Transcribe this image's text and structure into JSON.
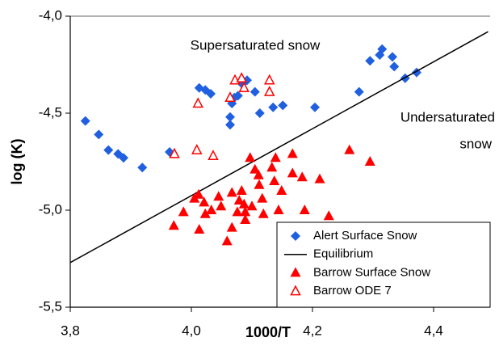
{
  "chart_data": {
    "type": "scatter",
    "x_label": "1000/T",
    "y_label": "log (K)",
    "xlim": [
      3.8,
      4.5
    ],
    "ylim": [
      -5.5,
      -4.0
    ],
    "xticks": [
      {
        "value": 3.8,
        "label": "3,8"
      },
      {
        "value": 4.0,
        "label": "4,0"
      },
      {
        "value": 4.2,
        "label": "4,2"
      },
      {
        "value": 4.4,
        "label": "4,4"
      }
    ],
    "yticks": [
      {
        "value": -5.5,
        "label": "-5,5"
      },
      {
        "value": -5.0,
        "label": "-5,0"
      },
      {
        "value": -4.5,
        "label": "-4,5"
      },
      {
        "value": -4.0,
        "label": "-4,0"
      }
    ],
    "annotations": [
      "Supersaturated snow",
      "Undersaturated",
      "snow"
    ],
    "series": [
      {
        "name": "Alert Surface Snow",
        "color": "#2060e0",
        "marker": "diamond",
        "x": [
          3.825,
          3.847,
          3.863,
          3.879,
          3.888,
          3.919,
          3.964,
          4.013,
          4.023,
          4.032,
          4.064,
          4.064,
          4.067,
          4.071,
          4.077,
          4.084,
          4.092,
          4.105,
          4.113,
          4.135,
          4.151,
          4.204,
          4.277,
          4.295,
          4.311,
          4.315,
          4.332,
          4.335,
          4.353,
          4.372
        ],
        "values": [
          -4.54,
          -4.61,
          -4.69,
          -4.71,
          -4.73,
          -4.78,
          -4.7,
          -4.37,
          -4.38,
          -4.4,
          -4.52,
          -4.56,
          -4.45,
          -4.42,
          -4.41,
          -4.35,
          -4.33,
          -4.39,
          -4.5,
          -4.47,
          -4.46,
          -4.47,
          -4.39,
          -4.23,
          -4.2,
          -4.17,
          -4.21,
          -4.26,
          -4.32,
          -4.29
        ]
      },
      {
        "name": "Equilibrium",
        "color": "#000000",
        "marker": "line",
        "x": [
          3.8,
          4.49
        ],
        "values": [
          -5.27,
          -4.08
        ]
      },
      {
        "name": "Barrow Surface Snow",
        "color": "#ff0000",
        "marker": "triangle",
        "x": [
          3.972,
          3.971,
          3.987,
          4.005,
          4.012,
          4.013,
          4.021,
          4.023,
          4.033,
          4.045,
          4.049,
          4.059,
          4.067,
          4.067,
          4.076,
          4.079,
          4.083,
          4.087,
          4.089,
          4.089,
          4.097,
          4.1,
          4.105,
          4.111,
          4.112,
          4.117,
          4.119,
          4.133,
          4.137,
          4.139,
          4.144,
          4.149,
          4.167,
          4.167,
          4.183,
          4.187,
          4.212,
          4.227,
          4.261,
          4.295
        ],
        "values": [
          -4.71,
          -5.08,
          -5.01,
          -4.94,
          -4.92,
          -5.1,
          -4.96,
          -5.02,
          -5.0,
          -4.93,
          -4.98,
          -5.16,
          -4.91,
          -5.09,
          -5.01,
          -4.95,
          -4.9,
          -4.97,
          -5.01,
          -5.05,
          -4.73,
          -4.98,
          -4.79,
          -4.82,
          -4.87,
          -4.94,
          -5.02,
          -4.78,
          -4.85,
          -4.73,
          -5.0,
          -4.9,
          -4.71,
          -4.81,
          -4.83,
          -5.0,
          -4.84,
          -5.03,
          -4.69,
          -4.75
        ]
      },
      {
        "name": "Barrow ODE 7",
        "color": "#ff0000",
        "marker": "triangle-open",
        "x": [
          3.972,
          4.011,
          4.009,
          4.036,
          4.064,
          4.072,
          4.083,
          4.087,
          4.129,
          4.129
        ],
        "values": [
          -4.71,
          -4.45,
          -4.69,
          -4.72,
          -4.42,
          -4.33,
          -4.32,
          -4.37,
          -4.33,
          -4.39
        ]
      }
    ]
  }
}
